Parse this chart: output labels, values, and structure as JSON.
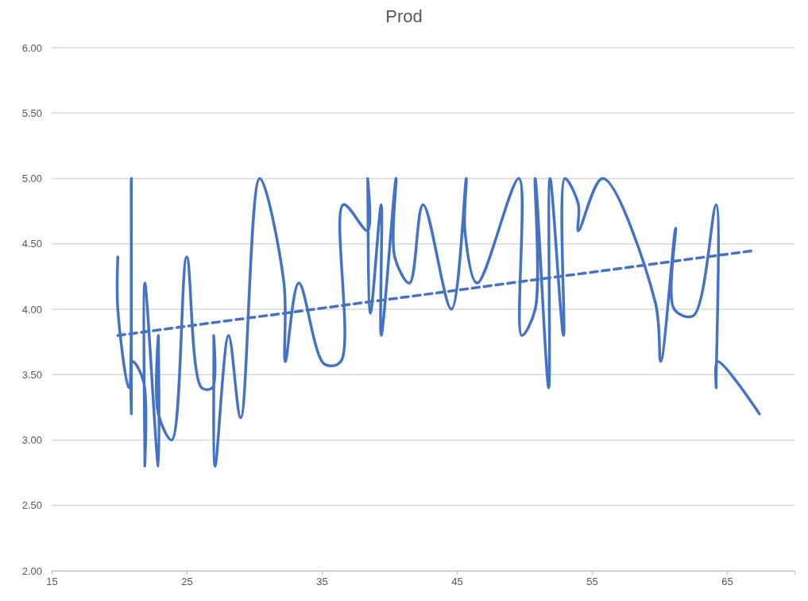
{
  "chart_data": {
    "type": "line",
    "title": "Prod",
    "xlim": [
      15,
      70
    ],
    "xticks": [
      15,
      25,
      35,
      45,
      55,
      65
    ],
    "ylim": [
      2,
      6
    ],
    "yticks": [
      {
        "value": 2,
        "label": "2.00"
      },
      {
        "value": 2.5,
        "label": "2.50"
      },
      {
        "value": 3,
        "label": "3.00"
      },
      {
        "value": 3.5,
        "label": "3.50"
      },
      {
        "value": 4,
        "label": "4.00"
      },
      {
        "value": 4.5,
        "label": "4.50"
      },
      {
        "value": 5,
        "label": "5.00"
      },
      {
        "value": 5.5,
        "label": "5.50"
      },
      {
        "value": 6,
        "label": "6.00"
      }
    ],
    "grid": "y",
    "marker": "none",
    "series": [
      {
        "color": "#4472c4",
        "line_style": "solid",
        "x": [
          19.9,
          19.9,
          20.7,
          20.9,
          20.9,
          21.0,
          21.8,
          21.9,
          21.9,
          22.9,
          22.9,
          22.9,
          23.9,
          25.0,
          26.1,
          26.9,
          27.0,
          27.1,
          28.1,
          29.0,
          30.4,
          32.2,
          32.3,
          33.3,
          35.2,
          36.4,
          36.6,
          38.4,
          38.4,
          38.6,
          39.4,
          39.4,
          40.5,
          40.4,
          41.5,
          42.5,
          44.6,
          45.7,
          45.6,
          46.5,
          49.6,
          49.8,
          50.8,
          50.8,
          51.8,
          51.9,
          52.9,
          53.0,
          54.0,
          54.0,
          55.8,
          59.7,
          60.1,
          61.2,
          61.1,
          62.5,
          64.2,
          64.2,
          64.3,
          67.4
        ],
        "values": [
          4.4,
          4.0,
          3.4,
          5.0,
          3.2,
          3.6,
          3.45,
          2.8,
          4.2,
          2.8,
          3.8,
          3.2,
          3.0,
          4.4,
          3.4,
          3.4,
          3.8,
          2.8,
          3.8,
          3.17,
          5.0,
          4.2,
          3.6,
          4.2,
          3.58,
          3.6,
          4.8,
          4.6,
          5.0,
          3.97,
          4.8,
          3.8,
          5.0,
          4.4,
          4.2,
          4.8,
          4.0,
          5.0,
          4.6,
          4.2,
          5.0,
          3.8,
          4.0,
          5.0,
          3.4,
          5.0,
          3.8,
          5.0,
          4.8,
          4.6,
          5.0,
          4.05,
          3.6,
          4.62,
          4.0,
          3.95,
          4.8,
          3.4,
          3.6,
          3.2
        ]
      },
      {
        "color": "#4472c4",
        "line_style": "dashed",
        "x": [
          19.9,
          67.1
        ],
        "values": [
          3.8,
          4.45
        ]
      }
    ]
  }
}
